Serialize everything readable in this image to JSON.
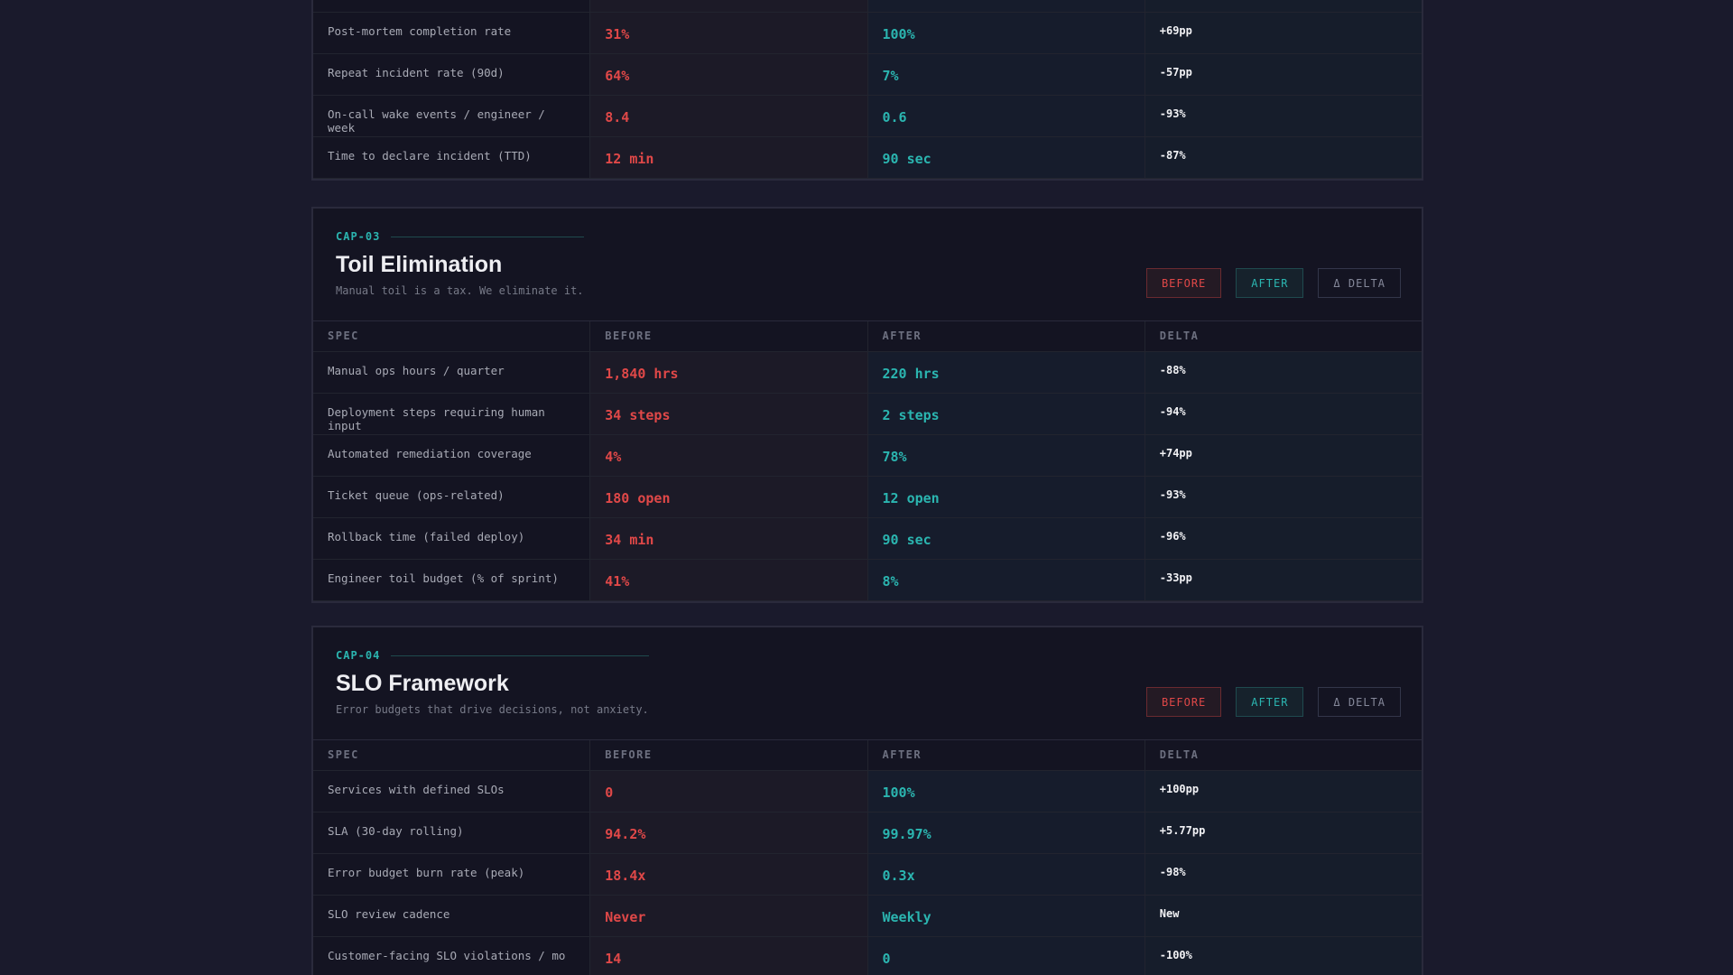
{
  "sections": [
    {
      "rows": [
        [
          "Post-mortem completion rate",
          "31%",
          "100%",
          "+69pp"
        ],
        [
          "Repeat incident rate (90d)",
          "64%",
          "7%",
          "-57pp"
        ],
        [
          "On-call wake events / engineer / week",
          "8.4",
          "0.6",
          "-93%"
        ],
        [
          "Time to declare incident (TTD)",
          "12 min",
          "90 sec",
          "-87%"
        ]
      ]
    },
    {
      "code": "CAP-03",
      "title": "Toil Elimination",
      "subtitle": "Manual toil is a tax. We eliminate it.",
      "buttons": [
        "BEFORE",
        "AFTER",
        "Δ DELTA"
      ],
      "columns": [
        "SPEC",
        "BEFORE",
        "AFTER",
        "DELTA"
      ],
      "rows": [
        [
          "Manual ops hours / quarter",
          "1,840 hrs",
          "220 hrs",
          "-88%"
        ],
        [
          "Deployment steps requiring human input",
          "34 steps",
          "2 steps",
          "-94%"
        ],
        [
          "Automated remediation coverage",
          "4%",
          "78%",
          "+74pp"
        ],
        [
          "Ticket queue (ops-related)",
          "180 open",
          "12 open",
          "-93%"
        ],
        [
          "Rollback time (failed deploy)",
          "34 min",
          "90 sec",
          "-96%"
        ],
        [
          "Engineer toil budget (% of sprint)",
          "41%",
          "8%",
          "-33pp"
        ]
      ]
    },
    {
      "code": "CAP-04",
      "title": "SLO Framework",
      "subtitle": "Error budgets that drive decisions, not anxiety.",
      "buttons": [
        "BEFORE",
        "AFTER",
        "Δ DELTA"
      ],
      "columns": [
        "SPEC",
        "BEFORE",
        "AFTER",
        "DELTA"
      ],
      "rows": [
        [
          "Services with defined SLOs",
          "0",
          "100%",
          "+100pp"
        ],
        [
          "SLA (30-day rolling)",
          "94.2%",
          "99.97%",
          "+5.77pp"
        ],
        [
          "Error budget burn rate (peak)",
          "18.4x",
          "0.3x",
          "-98%"
        ],
        [
          "SLO review cadence",
          "Never",
          "Weekly",
          "New"
        ],
        [
          "Customer-facing SLO violations / mo",
          "14",
          "0",
          "-100%"
        ]
      ]
    }
  ]
}
